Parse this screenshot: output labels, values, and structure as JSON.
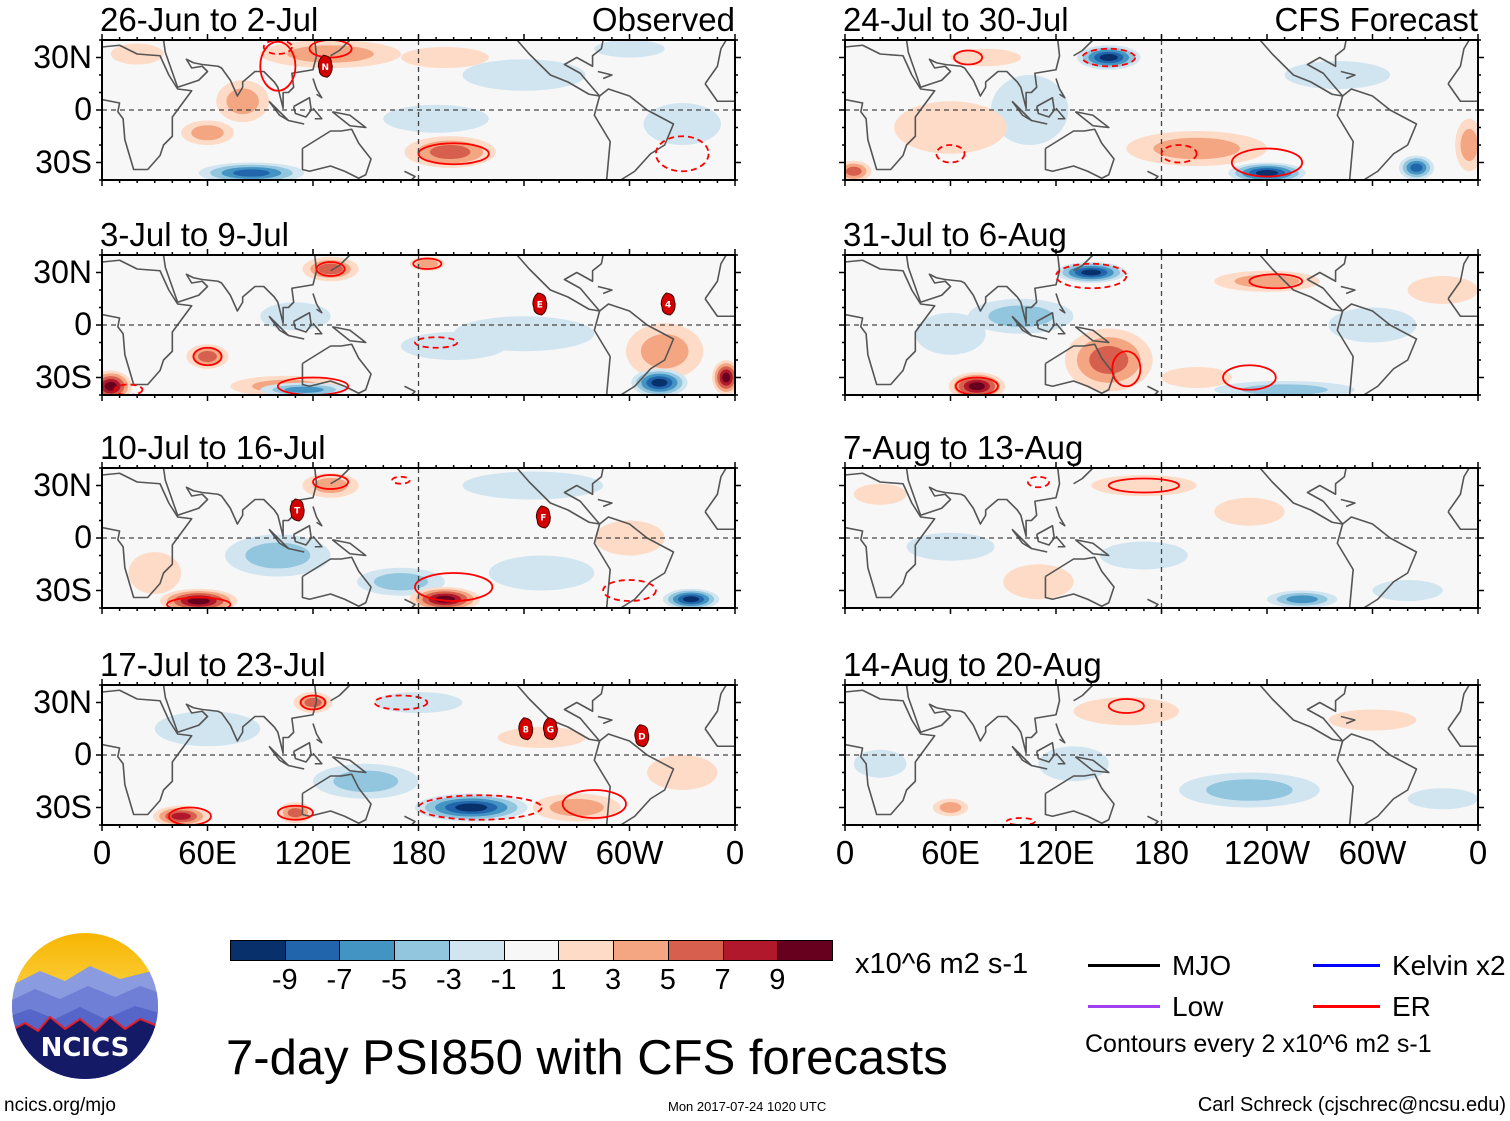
{
  "chart_data": {
    "type": "heatmap",
    "title": "7-day PSI850 with CFS forecasts",
    "variable": "PSI850 anomaly",
    "units": "x10^6 m2 s-1",
    "section_labels": {
      "observed": "Observed",
      "forecast": "CFS Forecast"
    },
    "lat_ticks": [
      "30N",
      "0",
      "30S"
    ],
    "lon_ticks": [
      "0",
      "60E",
      "120E",
      "180",
      "120W",
      "60W",
      "0"
    ],
    "lat_range": [
      -40,
      40
    ],
    "lon_range": [
      0,
      360
    ],
    "panels": [
      {
        "title": "26-Jun to 2-Jul",
        "column": "observed",
        "storms": [
          "N"
        ]
      },
      {
        "title": "3-Jul to 9-Jul",
        "column": "observed",
        "storms": [
          "E",
          "4"
        ]
      },
      {
        "title": "10-Jul to 16-Jul",
        "column": "observed",
        "storms": [
          "T",
          "F"
        ]
      },
      {
        "title": "17-Jul to 23-Jul",
        "column": "observed",
        "storms": [
          "8",
          "G",
          "D"
        ]
      },
      {
        "title": "24-Jul to 30-Jul",
        "column": "forecast",
        "storms": []
      },
      {
        "title": "31-Jul to 6-Aug",
        "column": "forecast",
        "storms": []
      },
      {
        "title": "7-Aug to 13-Aug",
        "column": "forecast",
        "storms": []
      },
      {
        "title": "14-Aug to 20-Aug",
        "column": "forecast",
        "storms": []
      }
    ],
    "colorbar": {
      "labels": [
        "-9",
        "-7",
        "-5",
        "-3",
        "-1",
        "1",
        "3",
        "5",
        "7",
        "9"
      ],
      "colors": [
        "#08306b",
        "#2166ac",
        "#4393c3",
        "#92c5de",
        "#d1e5f0",
        "#f7f7f7",
        "#fddbc7",
        "#f4a582",
        "#d6604d",
        "#b2182b",
        "#67001f"
      ]
    },
    "legend": {
      "items": [
        {
          "label": "MJO",
          "color": "#000000"
        },
        {
          "label": "Kelvin x2",
          "color": "#0000ff"
        },
        {
          "label": "Low",
          "color": "#a040f0"
        },
        {
          "label": "ER",
          "color": "#ff0000"
        }
      ],
      "contour_note": "Contours every 2 x10^6 m2 s-1"
    }
  },
  "footer": {
    "site": "ncics.org/mjo",
    "timestamp": "Mon 2017-07-24 1020 UTC",
    "author": "Carl Schreck (cjschrec@ncsu.edu)"
  },
  "logo": {
    "text": "NCICS"
  }
}
